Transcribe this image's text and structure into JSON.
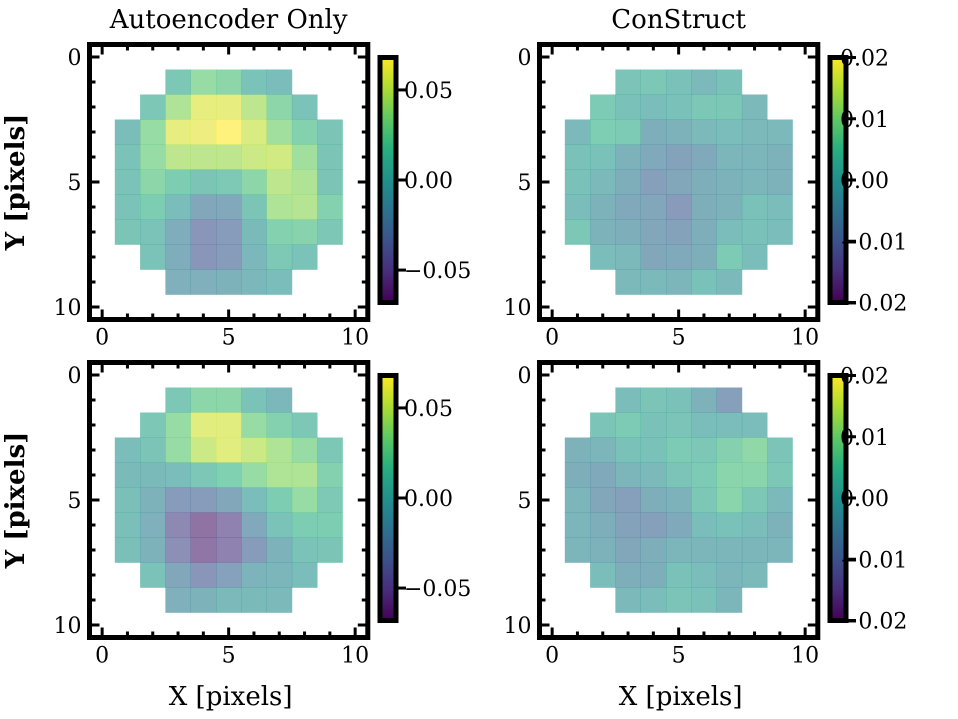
{
  "chart_data": [
    {
      "type": "heatmap",
      "title": "Autoencoder Only",
      "xlabel": "",
      "ylabel": "Y [pixels]",
      "xticks": [
        0,
        5,
        10
      ],
      "yticks": [
        0,
        5,
        10
      ],
      "xlim": [
        -0.5,
        10.5
      ],
      "ylim": [
        10.5,
        -0.5
      ],
      "colormap": "viridis",
      "alpha": 0.6,
      "clim": [
        -0.068,
        0.068
      ],
      "colorbar_ticks": [
        0.05,
        0.0,
        -0.05
      ],
      "colorbar_tick_labels": [
        "0.05",
        "0.00",
        "−0.05"
      ],
      "row_start_col": [
        null,
        3,
        2,
        1,
        1,
        1,
        1,
        1,
        2,
        3,
        null
      ],
      "values": [
        [],
        [
          0.01,
          0.03,
          0.025,
          0.005,
          0.0
        ],
        [
          0.01,
          0.04,
          0.06,
          0.06,
          0.045,
          0.025,
          0.005
        ],
        [
          0.0,
          0.03,
          0.06,
          0.062,
          0.068,
          0.055,
          0.035,
          0.02,
          0.008
        ],
        [
          0.005,
          0.03,
          0.045,
          0.045,
          0.045,
          0.05,
          0.052,
          0.035,
          0.008
        ],
        [
          0.005,
          0.025,
          0.015,
          0.008,
          0.012,
          0.025,
          0.045,
          0.04,
          0.008
        ],
        [
          0.005,
          0.015,
          0.0,
          -0.02,
          -0.018,
          0.008,
          0.04,
          0.042,
          0.02
        ],
        [
          0.008,
          0.005,
          -0.015,
          -0.035,
          -0.03,
          -0.002,
          0.02,
          0.022,
          0.01
        ],
        [
          0.005,
          -0.015,
          -0.035,
          -0.03,
          -0.005,
          0.012,
          0.005
        ],
        [
          -0.012,
          -0.012,
          -0.01,
          -0.005,
          0.0
        ],
        []
      ]
    },
    {
      "type": "heatmap",
      "title": "ConStruct",
      "xlabel": "",
      "ylabel": "",
      "xticks": [
        0,
        5,
        10
      ],
      "yticks": [
        0,
        5,
        10
      ],
      "xlim": [
        -0.5,
        10.5
      ],
      "ylim": [
        10.5,
        -0.5
      ],
      "colormap": "viridis",
      "alpha": 0.6,
      "clim": [
        -0.02,
        0.02
      ],
      "colorbar_ticks": [
        0.02,
        0.01,
        0.0,
        -0.01,
        -0.02
      ],
      "colorbar_tick_labels": [
        "0.02",
        "0.01",
        "0.00",
        "−0.01",
        "−0.02"
      ],
      "row_start_col": [
        null,
        3,
        2,
        1,
        1,
        1,
        1,
        1,
        2,
        3,
        null
      ],
      "values": [
        [],
        [
          0.002,
          0.003,
          0.001,
          -0.001,
          0.001
        ],
        [
          0.004,
          0.001,
          0.0,
          0.001,
          0.003,
          0.003,
          -0.001
        ],
        [
          -0.001,
          0.005,
          0.004,
          -0.004,
          -0.003,
          -0.001,
          0.0,
          -0.001,
          -0.001
        ],
        [
          0.001,
          0.001,
          -0.003,
          -0.005,
          -0.007,
          -0.005,
          -0.002,
          -0.002,
          -0.003
        ],
        [
          0.001,
          -0.001,
          -0.004,
          -0.008,
          -0.006,
          -0.004,
          -0.003,
          -0.002,
          -0.003
        ],
        [
          0.0,
          -0.003,
          -0.005,
          -0.006,
          -0.009,
          -0.004,
          -0.003,
          0.001,
          0.0
        ],
        [
          0.003,
          -0.003,
          -0.004,
          -0.006,
          -0.007,
          -0.004,
          0.0,
          0.001,
          0.0
        ],
        [
          0.0,
          -0.001,
          -0.006,
          -0.005,
          -0.004,
          0.004,
          0.0
        ],
        [
          -0.001,
          -0.001,
          -0.002,
          0.001,
          -0.001
        ],
        []
      ]
    },
    {
      "type": "heatmap",
      "title": "",
      "xlabel": "X [pixels]",
      "ylabel": "Y [pixels]",
      "xticks": [
        0,
        5,
        10
      ],
      "yticks": [
        0,
        5,
        10
      ],
      "xlim": [
        -0.5,
        10.5
      ],
      "ylim": [
        10.5,
        -0.5
      ],
      "colormap": "viridis",
      "alpha": 0.6,
      "clim": [
        -0.068,
        0.068
      ],
      "colorbar_ticks": [
        0.05,
        0.0,
        -0.05
      ],
      "colorbar_tick_labels": [
        "0.05",
        "0.00",
        "−0.05"
      ],
      "row_start_col": [
        null,
        3,
        2,
        1,
        1,
        1,
        1,
        1,
        2,
        3,
        null
      ],
      "values": [
        [],
        [
          0.01,
          0.025,
          0.025,
          0.005,
          -0.005
        ],
        [
          0.01,
          0.03,
          0.058,
          0.058,
          0.03,
          0.02,
          0.01
        ],
        [
          0.0,
          0.008,
          0.03,
          0.05,
          0.058,
          0.05,
          0.04,
          0.03,
          0.01
        ],
        [
          -0.002,
          -0.002,
          0.0,
          0.01,
          0.018,
          0.03,
          0.04,
          0.04,
          0.02
        ],
        [
          0.003,
          -0.01,
          -0.03,
          -0.03,
          -0.02,
          0.0,
          0.015,
          0.03,
          0.012
        ],
        [
          0.002,
          -0.012,
          -0.045,
          -0.06,
          -0.05,
          -0.018,
          0.005,
          0.015,
          0.015
        ],
        [
          0.003,
          -0.01,
          -0.04,
          -0.058,
          -0.05,
          -0.03,
          -0.01,
          0.005,
          0.008
        ],
        [
          0.005,
          -0.02,
          -0.035,
          -0.025,
          -0.008,
          -0.006,
          0.0
        ],
        [
          -0.012,
          -0.01,
          -0.004,
          -0.002,
          -0.004
        ],
        []
      ]
    },
    {
      "type": "heatmap",
      "title": "",
      "xlabel": "X [pixels]",
      "ylabel": "",
      "xticks": [
        0,
        5,
        10
      ],
      "yticks": [
        0,
        5,
        10
      ],
      "xlim": [
        -0.5,
        10.5
      ],
      "ylim": [
        10.5,
        -0.5
      ],
      "colormap": "viridis",
      "alpha": 0.6,
      "clim": [
        -0.02,
        0.02
      ],
      "colorbar_ticks": [
        0.02,
        0.01,
        0.0,
        -0.01,
        -0.02
      ],
      "colorbar_tick_labels": [
        "0.02",
        "0.01",
        "0.00",
        "−0.01",
        "−0.02"
      ],
      "row_start_col": [
        null,
        3,
        2,
        1,
        1,
        1,
        1,
        1,
        2,
        3,
        null
      ],
      "values": [
        [],
        [
          0.0,
          0.002,
          0.001,
          -0.003,
          -0.008
        ],
        [
          0.002,
          0.004,
          0.001,
          0.002,
          0.0,
          0.0,
          0.0
        ],
        [
          -0.003,
          -0.002,
          0.001,
          0.001,
          0.004,
          0.003,
          0.006,
          0.008,
          0.002
        ],
        [
          -0.004,
          -0.005,
          -0.002,
          -0.001,
          0.002,
          0.004,
          0.007,
          0.007,
          0.003
        ],
        [
          -0.002,
          -0.006,
          -0.008,
          -0.004,
          -0.003,
          0.003,
          0.007,
          0.003,
          -0.001
        ],
        [
          -0.002,
          -0.004,
          -0.007,
          -0.008,
          -0.005,
          0.0,
          0.001,
          0.0,
          -0.003
        ],
        [
          -0.002,
          -0.003,
          -0.006,
          -0.004,
          -0.002,
          -0.002,
          -0.002,
          -0.002,
          -0.002
        ],
        [
          0.0,
          -0.004,
          -0.004,
          0.001,
          0.0,
          -0.002,
          -0.001
        ],
        [
          -0.001,
          0.0,
          0.002,
          0.001,
          -0.002
        ],
        []
      ]
    }
  ]
}
